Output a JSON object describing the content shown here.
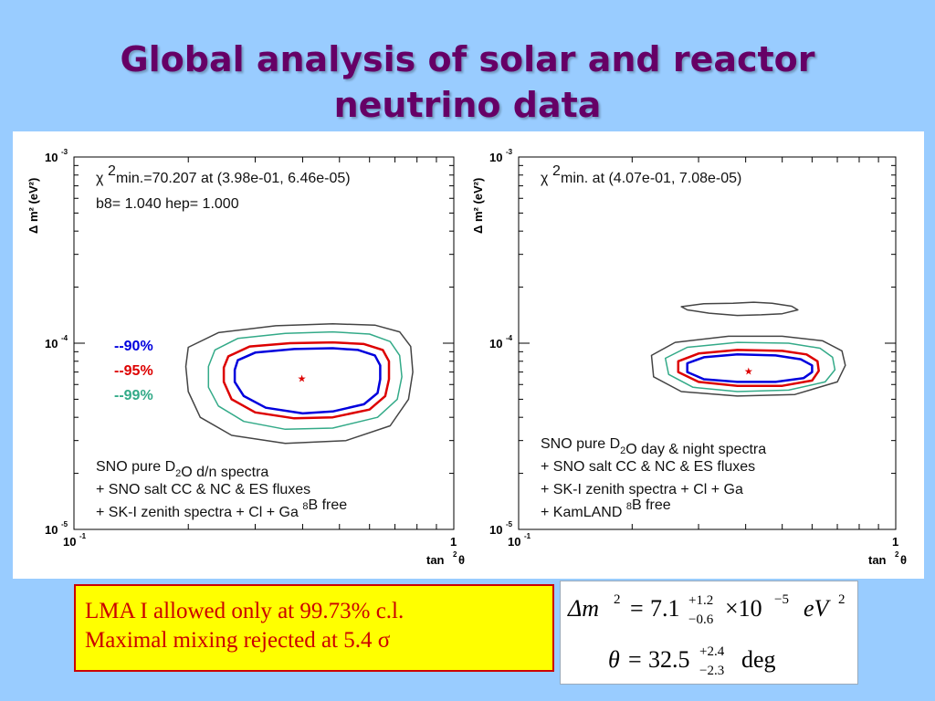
{
  "title_lines": [
    "Global analysis of solar and reactor",
    "neutrino data"
  ],
  "colors": {
    "c90": "#0000dd",
    "c95": "#dd0000",
    "c99": "#33aa88",
    "outer": "#444444"
  },
  "chart_data": [
    {
      "type": "contour",
      "xlim": [
        0.1,
        1
      ],
      "ylim": [
        1e-05,
        0.001
      ],
      "log_x": true,
      "log_y": true,
      "xlabel": "tan",
      "xlabel_sup": "2",
      "xlabel_tail": "θ",
      "ylabel": "Δ m² (eV²)",
      "xticks": [
        {
          "mant": "10",
          "exp": "-1"
        },
        {
          "mant": "1",
          "exp": ""
        }
      ],
      "yticks": [
        {
          "mant": "10",
          "exp": "-3"
        },
        {
          "mant": "10",
          "exp": "-4"
        },
        {
          "mant": "10",
          "exp": "-5"
        }
      ],
      "best_fit": {
        "x": 0.398,
        "y": 6.46e-05
      },
      "chi_line": {
        "pre": "χ ",
        "sup": "2",
        "post": "min.=70.207 at (3.98e-01, 6.46e-05)"
      },
      "info_line": "b8= 1.040 hep= 1.000",
      "legend": [
        "--90%",
        "--95%",
        "--99%"
      ],
      "dataset_lines": [
        [
          {
            "t": "SNO pure D"
          },
          {
            "t": "2",
            "sub": true
          },
          {
            "t": "O d/n spectra"
          }
        ],
        [
          {
            "t": "+ SNO salt CC & NC & ES fluxes"
          }
        ],
        [
          {
            "t": "+ SK-I zenith spectra + Cl + Ga   "
          },
          {
            "t": "8",
            "sup": true
          },
          {
            "t": "B free"
          }
        ]
      ],
      "contours": [
        {
          "level": "90%",
          "color_key": "c90",
          "points": [
            [
              0.27,
              8.1e-05
            ],
            [
              0.3,
              8.9e-05
            ],
            [
              0.38,
              9.3e-05
            ],
            [
              0.48,
              9.4e-05
            ],
            [
              0.56,
              9.2e-05
            ],
            [
              0.62,
              8.6e-05
            ],
            [
              0.64,
              7.6e-05
            ],
            [
              0.64,
              6.4e-05
            ],
            [
              0.63,
              5.4e-05
            ],
            [
              0.58,
              4.7e-05
            ],
            [
              0.48,
              4.3e-05
            ],
            [
              0.4,
              4.2e-05
            ],
            [
              0.32,
              4.5e-05
            ],
            [
              0.28,
              5.2e-05
            ],
            [
              0.265,
              6.2e-05
            ],
            [
              0.265,
              7.2e-05
            ]
          ]
        },
        {
          "level": "95%",
          "color_key": "c95",
          "points": [
            [
              0.255,
              8.5e-05
            ],
            [
              0.29,
              9.6e-05
            ],
            [
              0.37,
              0.0001
            ],
            [
              0.48,
              0.000101
            ],
            [
              0.58,
              9.9e-05
            ],
            [
              0.65,
              9.2e-05
            ],
            [
              0.675,
              8e-05
            ],
            [
              0.675,
              6.4e-05
            ],
            [
              0.66,
              5.2e-05
            ],
            [
              0.6,
              4.4e-05
            ],
            [
              0.48,
              4e-05
            ],
            [
              0.38,
              3.95e-05
            ],
            [
              0.3,
              4.25e-05
            ],
            [
              0.26,
              5e-05
            ],
            [
              0.248,
              6.2e-05
            ],
            [
              0.248,
              7.4e-05
            ]
          ]
        },
        {
          "level": "99%",
          "color_key": "c99",
          "points": [
            [
              0.235,
              9.2e-05
            ],
            [
              0.27,
              0.000106
            ],
            [
              0.36,
              0.000113
            ],
            [
              0.48,
              0.000115
            ],
            [
              0.6,
              0.000112
            ],
            [
              0.68,
              0.000102
            ],
            [
              0.72,
              8.6e-05
            ],
            [
              0.73,
              6.6e-05
            ],
            [
              0.71,
              5e-05
            ],
            [
              0.63,
              4e-05
            ],
            [
              0.48,
              3.5e-05
            ],
            [
              0.36,
              3.45e-05
            ],
            [
              0.28,
              3.8e-05
            ],
            [
              0.24,
              4.6e-05
            ],
            [
              0.226,
              5.8e-05
            ],
            [
              0.226,
              7.5e-05
            ]
          ]
        },
        {
          "level": "outer",
          "color_key": "outer",
          "points": [
            [
              0.2,
              9.5e-05
            ],
            [
              0.24,
              0.000114
            ],
            [
              0.34,
              0.000124
            ],
            [
              0.48,
              0.000127
            ],
            [
              0.62,
              0.000125
            ],
            [
              0.72,
              0.000115
            ],
            [
              0.77,
              9.6e-05
            ],
            [
              0.78,
              7e-05
            ],
            [
              0.76,
              5e-05
            ],
            [
              0.68,
              3.6e-05
            ],
            [
              0.52,
              3e-05
            ],
            [
              0.36,
              2.9e-05
            ],
            [
              0.26,
              3.2e-05
            ],
            [
              0.215,
              4e-05
            ],
            [
              0.2,
              5.5e-05
            ],
            [
              0.197,
              7.5e-05
            ]
          ]
        }
      ]
    },
    {
      "type": "contour",
      "xlim": [
        0.1,
        1
      ],
      "ylim": [
        1e-05,
        0.001
      ],
      "log_x": true,
      "log_y": true,
      "xlabel": "tan",
      "xlabel_sup": "2",
      "xlabel_tail": "θ",
      "ylabel": "Δ m² (eV²)",
      "xticks": [
        {
          "mant": "10",
          "exp": "-1"
        },
        {
          "mant": "1",
          "exp": ""
        }
      ],
      "yticks": [
        {
          "mant": "10",
          "exp": "-3"
        },
        {
          "mant": "10",
          "exp": "-4"
        },
        {
          "mant": "10",
          "exp": "-5"
        }
      ],
      "best_fit": {
        "x": 0.407,
        "y": 7.08e-05
      },
      "chi_line": {
        "pre": "χ ",
        "sup": "2",
        "post": "min.  at (4.07e-01, 7.08e-05)"
      },
      "dataset_lines": [
        [
          {
            "t": "SNO pure D"
          },
          {
            "t": "2",
            "sub": true
          },
          {
            "t": "O day & night spectra"
          }
        ],
        [
          {
            "t": "+ SNO salt CC & NC & ES fluxes"
          }
        ],
        [
          {
            "t": "+ SK-I zenith spectra + Cl + Ga"
          }
        ],
        [
          {
            "t": "+ KamLAND    "
          },
          {
            "t": "8",
            "sup": true
          },
          {
            "t": "B free"
          }
        ]
      ],
      "contours": [
        {
          "level": "90%",
          "color_key": "c90",
          "points": [
            [
              0.28,
              7.8e-05
            ],
            [
              0.31,
              8.4e-05
            ],
            [
              0.38,
              8.7e-05
            ],
            [
              0.48,
              8.6e-05
            ],
            [
              0.56,
              8.2e-05
            ],
            [
              0.6,
              7.6e-05
            ],
            [
              0.6,
              7e-05
            ],
            [
              0.57,
              6.5e-05
            ],
            [
              0.48,
              6.2e-05
            ],
            [
              0.38,
              6.2e-05
            ],
            [
              0.31,
              6.4e-05
            ],
            [
              0.28,
              7e-05
            ]
          ]
        },
        {
          "level": "95%",
          "color_key": "c95",
          "points": [
            [
              0.265,
              8e-05
            ],
            [
              0.3,
              8.8e-05
            ],
            [
              0.38,
              9.2e-05
            ],
            [
              0.5,
              9.1e-05
            ],
            [
              0.58,
              8.7e-05
            ],
            [
              0.62,
              8e-05
            ],
            [
              0.625,
              7.1e-05
            ],
            [
              0.6,
              6.3e-05
            ],
            [
              0.5,
              5.9e-05
            ],
            [
              0.38,
              5.9e-05
            ],
            [
              0.3,
              6.2e-05
            ],
            [
              0.265,
              7e-05
            ]
          ]
        },
        {
          "level": "99%",
          "color_key": "c99",
          "points": [
            [
              0.245,
              8.3e-05
            ],
            [
              0.28,
              9.5e-05
            ],
            [
              0.38,
              0.000101
            ],
            [
              0.52,
              0.0001
            ],
            [
              0.63,
              9.4e-05
            ],
            [
              0.68,
              8.4e-05
            ],
            [
              0.69,
              7.2e-05
            ],
            [
              0.65,
              6.2e-05
            ],
            [
              0.52,
              5.6e-05
            ],
            [
              0.38,
              5.5e-05
            ],
            [
              0.29,
              5.8e-05
            ],
            [
              0.25,
              6.8e-05
            ]
          ]
        },
        {
          "level": "outer",
          "color_key": "outer",
          "points": [
            [
              0.225,
              8.6e-05
            ],
            [
              0.26,
              0.000101
            ],
            [
              0.36,
              0.000109
            ],
            [
              0.5,
              0.000109
            ],
            [
              0.64,
              0.000103
            ],
            [
              0.72,
              9.1e-05
            ],
            [
              0.735,
              7.6e-05
            ],
            [
              0.7,
              6.2e-05
            ],
            [
              0.54,
              5.3e-05
            ],
            [
              0.38,
              5.2e-05
            ],
            [
              0.27,
              5.5e-05
            ],
            [
              0.228,
              6.6e-05
            ]
          ]
        },
        {
          "level": "outer-island",
          "color_key": "outer",
          "points": [
            [
              0.27,
              0.000157
            ],
            [
              0.31,
              0.000163
            ],
            [
              0.37,
              0.000164
            ],
            [
              0.42,
              0.000166
            ],
            [
              0.47,
              0.000164
            ],
            [
              0.53,
              0.000158
            ],
            [
              0.55,
              0.000151
            ],
            [
              0.5,
              0.000144
            ],
            [
              0.44,
              0.000142
            ],
            [
              0.38,
              0.000141
            ],
            [
              0.32,
              0.000145
            ],
            [
              0.28,
              0.000151
            ]
          ]
        }
      ]
    }
  ],
  "conclusions": [
    "LMA I allowed only at 99.73% c.l.",
    "Maximal mixing rejected at 5.4 σ"
  ],
  "params": {
    "dm2": {
      "symbol": "Δm",
      "sup": "2",
      "eq": "=",
      "value": "7.1",
      "up": "+1.2",
      "down": "−0.6",
      "times": "×10",
      "exp": "−5",
      "unit": "eV",
      "unit_sup": "2"
    },
    "theta": {
      "symbol": "θ",
      "eq": "=",
      "value": "32.5",
      "up": "+2.4",
      "down": "−2.3",
      "unit": "deg"
    }
  }
}
